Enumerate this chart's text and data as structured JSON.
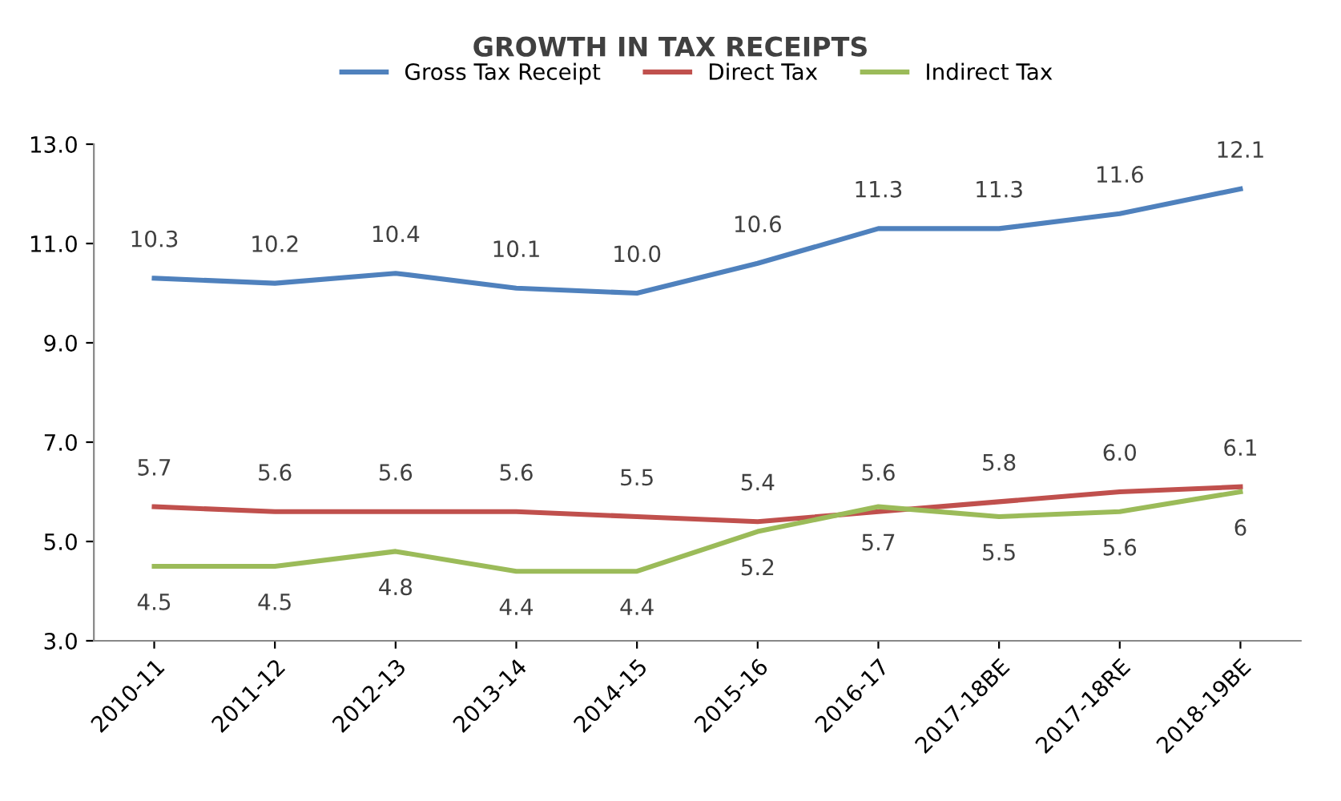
{
  "chart_data": {
    "type": "line",
    "title": "GROWTH IN TAX RECEIPTS",
    "categories": [
      "2010-11",
      "2011-12",
      "2012-13",
      "2013-14",
      "2014-15",
      "2015-16",
      "2016-17",
      "2017-18BE",
      "2017-18RE",
      "2018-19BE"
    ],
    "series": [
      {
        "name": "Gross Tax Receipt",
        "color": "#4f81bd",
        "values": [
          10.3,
          10.2,
          10.4,
          10.1,
          10.0,
          10.6,
          11.3,
          11.3,
          11.6,
          12.1
        ],
        "value_labels": [
          "10.3",
          "10.2",
          "10.4",
          "10.1",
          "10.0",
          "10.6",
          "11.3",
          "11.3",
          "11.6",
          "12.1"
        ]
      },
      {
        "name": "Direct Tax",
        "color": "#c0504d",
        "values": [
          5.7,
          5.6,
          5.6,
          5.6,
          5.5,
          5.4,
          5.6,
          5.8,
          6.0,
          6.1
        ],
        "value_labels": [
          "5.7",
          "5.6",
          "5.6",
          "5.6",
          "5.5",
          "5.4",
          "5.6",
          "5.8",
          "6.0",
          "6.1"
        ]
      },
      {
        "name": "Indirect Tax",
        "color": "#9bbb59",
        "values": [
          4.5,
          4.5,
          4.8,
          4.4,
          4.4,
          5.2,
          5.7,
          5.5,
          5.6,
          6
        ],
        "value_labels": [
          "4.5",
          "4.5",
          "4.8",
          "4.4",
          "4.4",
          "5.2",
          "5.7",
          "5.5",
          "5.6",
          "6"
        ]
      }
    ],
    "ylim": [
      3,
      13
    ],
    "yticks": [
      {
        "value": 3,
        "label": "3.0"
      },
      {
        "value": 5,
        "label": "5.0"
      },
      {
        "value": 7,
        "label": "7.0"
      },
      {
        "value": 9,
        "label": "9.0"
      },
      {
        "value": 11,
        "label": "11.0"
      },
      {
        "value": 13,
        "label": "13.0"
      }
    ],
    "grid": false,
    "legend": "top",
    "marker": "none",
    "line_style": "solid"
  }
}
